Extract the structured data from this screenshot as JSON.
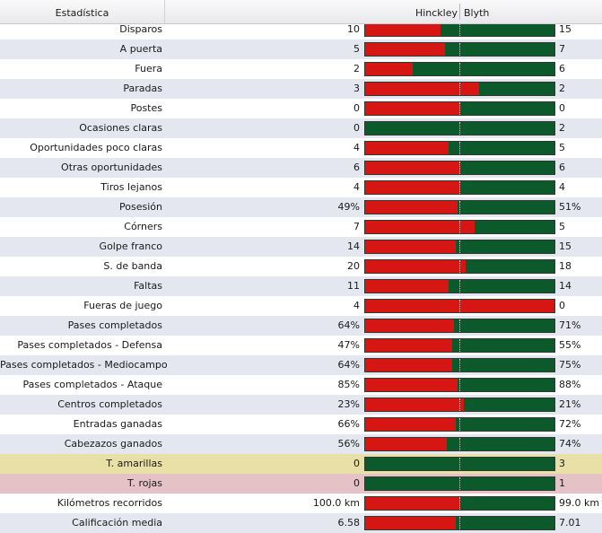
{
  "header": {
    "stat_label": "Estadística",
    "home_team": "Hinckley",
    "away_team": "Blyth"
  },
  "colors": {
    "home": "#d61612",
    "away": "#0c5a2c",
    "yellow_row": "#e8e0a6",
    "red_row": "#e4c2c6"
  },
  "stats": [
    {
      "label": "Disparos",
      "home": "10",
      "away": "15",
      "home_share": 0.4,
      "highlight": ""
    },
    {
      "label": "A puerta",
      "home": "5",
      "away": "7",
      "home_share": 0.42,
      "highlight": ""
    },
    {
      "label": "Fuera",
      "home": "2",
      "away": "6",
      "home_share": 0.25,
      "highlight": ""
    },
    {
      "label": "Paradas",
      "home": "3",
      "away": "2",
      "home_share": 0.6,
      "highlight": ""
    },
    {
      "label": "Postes",
      "home": "0",
      "away": "0",
      "home_share": 0.5,
      "highlight": ""
    },
    {
      "label": "Ocasiones claras",
      "home": "0",
      "away": "2",
      "home_share": 0.0,
      "highlight": ""
    },
    {
      "label": "Oportunidades poco claras",
      "home": "4",
      "away": "5",
      "home_share": 0.44,
      "highlight": ""
    },
    {
      "label": "Otras oportunidades",
      "home": "6",
      "away": "6",
      "home_share": 0.5,
      "highlight": ""
    },
    {
      "label": "Tiros lejanos",
      "home": "4",
      "away": "4",
      "home_share": 0.5,
      "highlight": ""
    },
    {
      "label": "Posesión",
      "home": "49%",
      "away": "51%",
      "home_share": 0.49,
      "highlight": ""
    },
    {
      "label": "Córners",
      "home": "7",
      "away": "5",
      "home_share": 0.58,
      "highlight": ""
    },
    {
      "label": "Golpe franco",
      "home": "14",
      "away": "15",
      "home_share": 0.48,
      "highlight": ""
    },
    {
      "label": "S. de banda",
      "home": "20",
      "away": "18",
      "home_share": 0.53,
      "highlight": ""
    },
    {
      "label": "Faltas",
      "home": "11",
      "away": "14",
      "home_share": 0.44,
      "highlight": ""
    },
    {
      "label": "Fueras de juego",
      "home": "4",
      "away": "0",
      "home_share": 1.0,
      "highlight": ""
    },
    {
      "label": "Pases completados",
      "home": "64%",
      "away": "71%",
      "home_share": 0.47,
      "highlight": ""
    },
    {
      "label": "Pases completados - Defensa",
      "home": "47%",
      "away": "55%",
      "home_share": 0.46,
      "highlight": ""
    },
    {
      "label": "Pases completados - Mediocampo",
      "home": "64%",
      "away": "75%",
      "home_share": 0.46,
      "highlight": ""
    },
    {
      "label": "Pases completados - Ataque",
      "home": "85%",
      "away": "88%",
      "home_share": 0.49,
      "highlight": ""
    },
    {
      "label": "Centros completados",
      "home": "23%",
      "away": "21%",
      "home_share": 0.52,
      "highlight": ""
    },
    {
      "label": "Entradas ganadas",
      "home": "66%",
      "away": "72%",
      "home_share": 0.48,
      "highlight": ""
    },
    {
      "label": "Cabezazos ganados",
      "home": "56%",
      "away": "74%",
      "home_share": 0.43,
      "highlight": ""
    },
    {
      "label": "T. amarillas",
      "home": "0",
      "away": "3",
      "home_share": 0.0,
      "highlight": "yellow"
    },
    {
      "label": "T. rojas",
      "home": "0",
      "away": "1",
      "home_share": 0.0,
      "highlight": "red"
    },
    {
      "label": "Kilómetros recorridos",
      "home": "100.0 km",
      "away": "99.0 km",
      "home_share": 0.5,
      "highlight": ""
    },
    {
      "label": "Calificación media",
      "home": "6.58",
      "away": "7.01",
      "home_share": 0.48,
      "highlight": ""
    }
  ]
}
